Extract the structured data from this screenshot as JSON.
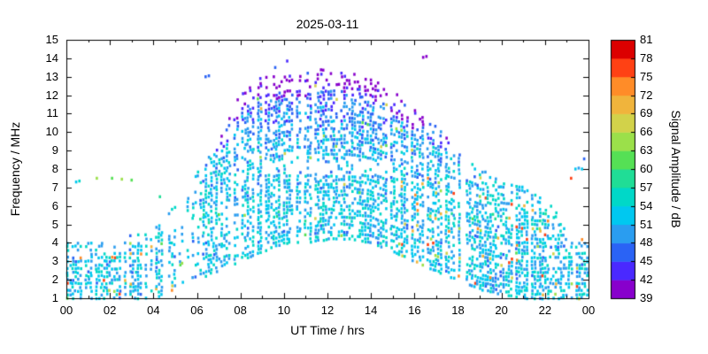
{
  "chart_data": {
    "type": "heatmap",
    "title": "2025-03-11",
    "xlabel": "UT Time / hrs",
    "ylabel": "Frequency / MHz",
    "xlim": [
      0,
      24
    ],
    "ylim": [
      1,
      15
    ],
    "x_tick_values": [
      0,
      2,
      4,
      6,
      8,
      10,
      12,
      14,
      16,
      18,
      20,
      22,
      24
    ],
    "x_tick_labels": [
      "00",
      "02",
      "04",
      "06",
      "08",
      "10",
      "12",
      "14",
      "16",
      "18",
      "20",
      "22",
      "00"
    ],
    "x_minor_tick_step_hr": 1,
    "y_tick_values": [
      1,
      2,
      3,
      4,
      5,
      6,
      7,
      8,
      9,
      10,
      11,
      12,
      13,
      14,
      15
    ],
    "grid": false,
    "legend": "colorbar-right",
    "colorbar": {
      "label": "Signal Amplitude / dB",
      "min": 39,
      "max": 81,
      "band_step": 3,
      "tick_values": [
        39,
        42,
        45,
        48,
        51,
        54,
        57,
        60,
        63,
        66,
        69,
        72,
        75,
        78,
        81
      ],
      "colors": [
        "#8800cc",
        "#4a29ff",
        "#2a63f5",
        "#2a9df0",
        "#00c8f0",
        "#00d8c8",
        "#20dd96",
        "#55e055",
        "#9be04a",
        "#d2d24a",
        "#f0b43c",
        "#ff8c28",
        "#ff4114",
        "#dc0000"
      ]
    },
    "sounding": {
      "note": "Ionosonde occupancy: hourly envelope [hour, f_min_MHz, f_max_MHz] of detected echoes; amplitudes mostly 45-57 dB (blue/cyan/teal), sporadic 63-78 dB (orange/red) at low frequency in early morning and evening, 39-45 dB (purple/blue) along the upper edge of the trace.",
      "seed": 20250311,
      "time_step_hr": 0.12,
      "freq_step_mhz": 0.2,
      "dot_w": 2.6,
      "dot_h": 3.3,
      "base_density": 0.58,
      "column_dropout": 0.16,
      "envelope": [
        [
          0,
          1.0,
          4.2
        ],
        [
          1,
          1.0,
          4.0
        ],
        [
          2,
          1.0,
          4.2
        ],
        [
          3,
          1.0,
          4.5
        ],
        [
          4,
          1.0,
          4.8
        ],
        [
          5,
          1.5,
          6.0
        ],
        [
          6,
          2.0,
          7.8
        ],
        [
          7,
          2.5,
          9.5
        ],
        [
          8,
          3.0,
          12.3
        ],
        [
          9,
          3.5,
          13.0
        ],
        [
          10,
          4.0,
          13.0
        ],
        [
          11,
          4.0,
          13.2
        ],
        [
          12,
          4.2,
          13.5
        ],
        [
          13,
          4.2,
          13.3
        ],
        [
          14,
          4.0,
          13.0
        ],
        [
          15,
          3.5,
          12.2
        ],
        [
          16,
          3.0,
          11.3
        ],
        [
          17,
          2.5,
          10.3
        ],
        [
          18,
          2.0,
          9.0
        ],
        [
          19,
          1.5,
          8.0
        ],
        [
          20,
          1.2,
          7.5
        ],
        [
          21,
          1.0,
          7.0
        ],
        [
          22,
          1.0,
          6.3
        ],
        [
          23,
          1.0,
          5.2
        ],
        [
          24,
          1.0,
          4.2
        ]
      ],
      "midday_gap": {
        "t": [
          9,
          15
        ],
        "f": [
          7.7,
          8.5
        ],
        "density_factor": 0.3
      },
      "extras": [
        [
          0.45,
          7.3,
          52
        ],
        [
          0.6,
          7.35,
          54
        ],
        [
          1.4,
          7.5,
          63
        ],
        [
          2.1,
          7.5,
          60
        ],
        [
          2.55,
          7.45,
          63
        ],
        [
          3.0,
          7.4,
          60
        ],
        [
          4.3,
          6.5,
          57
        ],
        [
          6.4,
          13.0,
          45
        ],
        [
          6.55,
          13.05,
          45
        ],
        [
          9.6,
          13.5,
          46
        ],
        [
          10.15,
          13.85,
          44
        ],
        [
          16.4,
          14.05,
          40
        ],
        [
          16.55,
          14.1,
          40
        ],
        [
          23.2,
          7.5,
          76
        ],
        [
          23.4,
          8.0,
          52
        ],
        [
          23.55,
          8.05,
          50
        ],
        [
          23.7,
          8.0,
          53
        ],
        [
          23.8,
          8.55,
          46
        ]
      ]
    }
  }
}
